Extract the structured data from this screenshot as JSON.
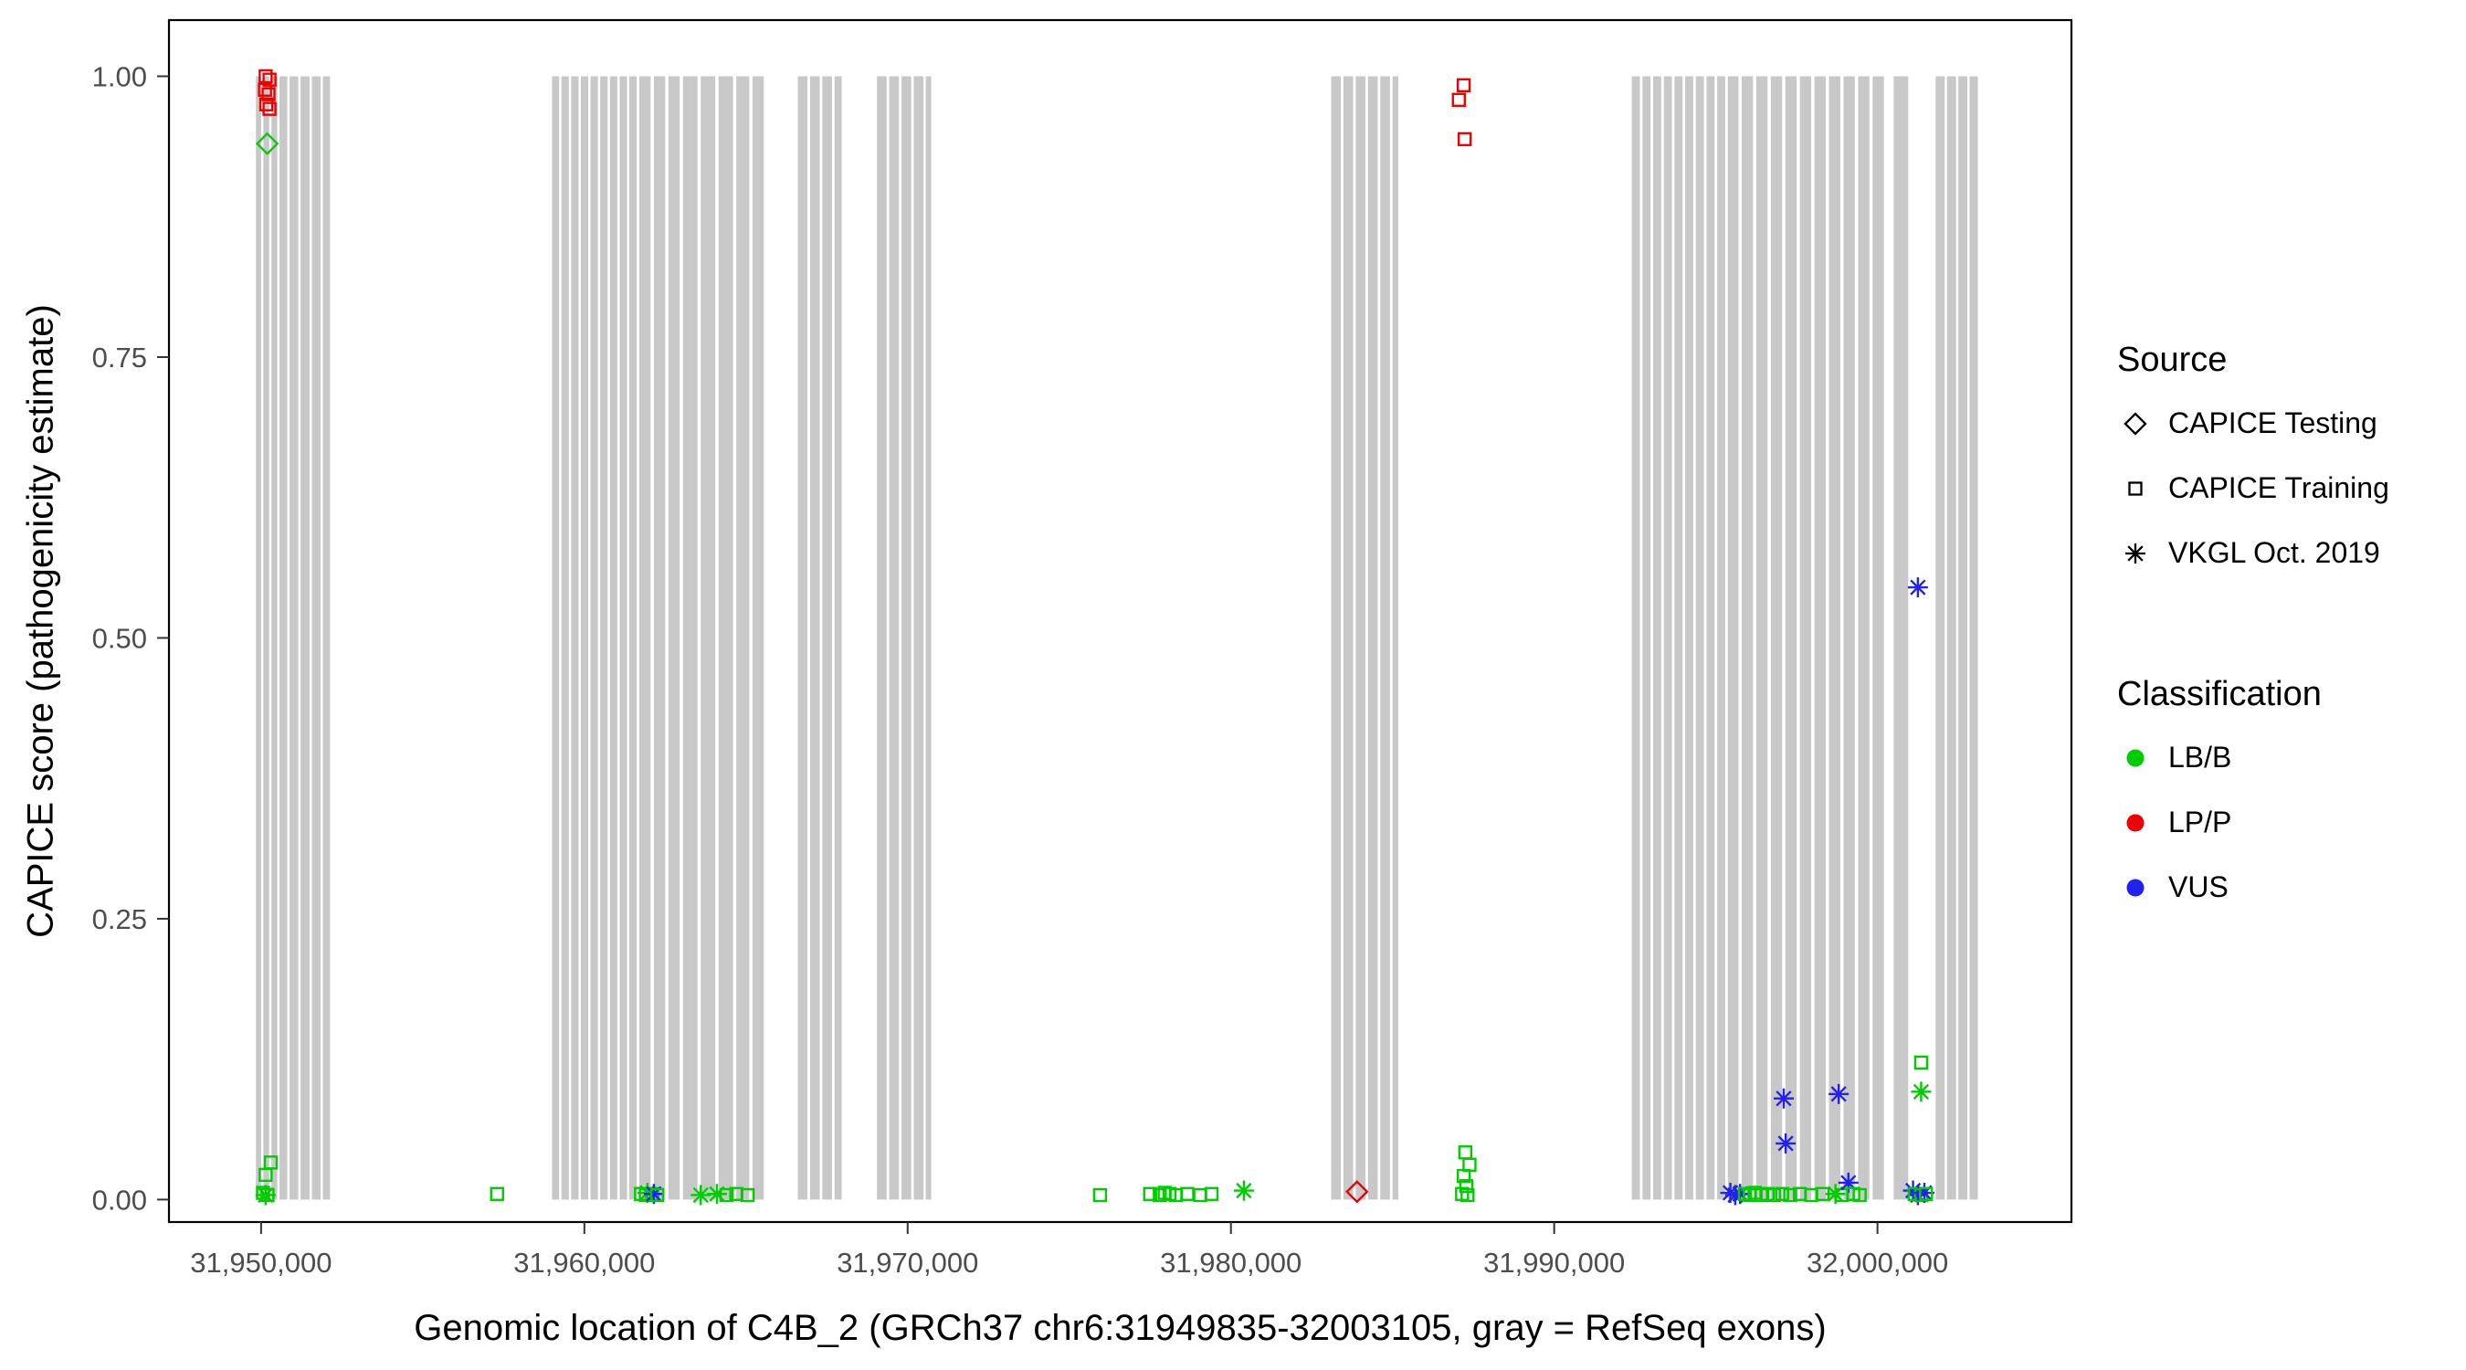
{
  "chart_data": {
    "type": "scatter",
    "xlabel": "Genomic location of C4B_2 (GRCh37 chr6:31949835-32003105, gray = RefSeq exons)",
    "ylabel": "CAPICE score (pathogenicity estimate)",
    "x_domain": [
      31947150,
      32006000
    ],
    "y_domain": [
      -0.02,
      1.05
    ],
    "x_ticks": [
      {
        "value": 31950000,
        "label": "31,950,000"
      },
      {
        "value": 31960000,
        "label": "31,960,000"
      },
      {
        "value": 31970000,
        "label": "31,970,000"
      },
      {
        "value": 31980000,
        "label": "31,980,000"
      },
      {
        "value": 31990000,
        "label": "31,990,000"
      },
      {
        "value": 32000000,
        "label": "32,000,000"
      }
    ],
    "y_ticks": [
      {
        "value": 0,
        "label": "0.00"
      },
      {
        "value": 0.25,
        "label": "0.25"
      },
      {
        "value": 0.5,
        "label": "0.50"
      },
      {
        "value": 0.75,
        "label": "0.75"
      },
      {
        "value": 1,
        "label": "1.00"
      }
    ],
    "colors": {
      "LB/B": "#00CD00",
      "LP/P": "#EE0000",
      "VUS": "#2222EE",
      "exon": "#C8C8C8",
      "tick_label": "#4D4D4D",
      "axis": "#333333"
    },
    "legend": {
      "source": {
        "title": "Source",
        "items": [
          {
            "label": "CAPICE Testing",
            "shape": "diamond"
          },
          {
            "label": "CAPICE Training",
            "shape": "square"
          },
          {
            "label": "VKGL Oct. 2019",
            "shape": "asterisk"
          }
        ]
      },
      "classification": {
        "title": "Classification",
        "items": [
          {
            "label": "LB/B",
            "color_key": "LB/B"
          },
          {
            "label": "LP/P",
            "color_key": "LP/P"
          },
          {
            "label": "VUS",
            "color_key": "VUS"
          }
        ]
      }
    },
    "exons": [
      [
        31949840,
        31950000
      ],
      [
        31950070,
        31950250
      ],
      [
        31950320,
        31950500
      ],
      [
        31950570,
        31950810
      ],
      [
        31950880,
        31951150
      ],
      [
        31951220,
        31951500
      ],
      [
        31951570,
        31951840
      ],
      [
        31951910,
        31952130
      ],
      [
        31959000,
        31959220
      ],
      [
        31959290,
        31959520
      ],
      [
        31959590,
        31959820
      ],
      [
        31959890,
        31960120
      ],
      [
        31960190,
        31960420
      ],
      [
        31960490,
        31960720
      ],
      [
        31960790,
        31961020
      ],
      [
        31961090,
        31961320
      ],
      [
        31961390,
        31961620
      ],
      [
        31961700,
        31962050
      ],
      [
        31962150,
        31962500
      ],
      [
        31962600,
        31962950
      ],
      [
        31963050,
        31963500
      ],
      [
        31963600,
        31964050
      ],
      [
        31964150,
        31964600
      ],
      [
        31964700,
        31965100
      ],
      [
        31965200,
        31965550
      ],
      [
        31966600,
        31966900
      ],
      [
        31966980,
        31967280
      ],
      [
        31967360,
        31967660
      ],
      [
        31967740,
        31967960
      ],
      [
        31969050,
        31969350
      ],
      [
        31969430,
        31969730
      ],
      [
        31969810,
        31970110
      ],
      [
        31970190,
        31970490
      ],
      [
        31970560,
        31970730
      ],
      [
        31983100,
        31983400
      ],
      [
        31983480,
        31983780
      ],
      [
        31983860,
        31984160
      ],
      [
        31984240,
        31984540
      ],
      [
        31984620,
        31984920
      ],
      [
        31985000,
        31985180
      ],
      [
        31992400,
        31992650
      ],
      [
        31992730,
        31992980
      ],
      [
        31993060,
        31993310
      ],
      [
        31993390,
        31993640
      ],
      [
        31993720,
        31993970
      ],
      [
        31994050,
        31994300
      ],
      [
        31994380,
        31994630
      ],
      [
        31994710,
        31994960
      ],
      [
        31995040,
        31995290
      ],
      [
        31995370,
        31995700
      ],
      [
        31995800,
        31996150
      ],
      [
        31996250,
        31996600
      ],
      [
        31996700,
        31997050
      ],
      [
        31997150,
        31997500
      ],
      [
        31997600,
        31997950
      ],
      [
        31998050,
        31998400
      ],
      [
        31998500,
        31998850
      ],
      [
        31998950,
        31999300
      ],
      [
        31999400,
        31999750
      ],
      [
        31999850,
        32000200
      ],
      [
        32000500,
        32000950
      ],
      [
        32001800,
        32002080
      ],
      [
        32002150,
        32002430
      ],
      [
        32002500,
        32002780
      ],
      [
        32002850,
        32003105
      ]
    ],
    "points": [
      {
        "x": 31950140,
        "y": 1.0,
        "source": "training",
        "class": "LP/P"
      },
      {
        "x": 31950260,
        "y": 0.997,
        "source": "training",
        "class": "LP/P"
      },
      {
        "x": 31950120,
        "y": 0.988,
        "source": "training",
        "class": "LP/P"
      },
      {
        "x": 31950230,
        "y": 0.984,
        "source": "training",
        "class": "LP/P"
      },
      {
        "x": 31950160,
        "y": 0.975,
        "source": "training",
        "class": "LP/P"
      },
      {
        "x": 31950260,
        "y": 0.971,
        "source": "training",
        "class": "LP/P"
      },
      {
        "x": 31950190,
        "y": 0.94,
        "source": "testing",
        "class": "LB/B"
      },
      {
        "x": 31987200,
        "y": 0.992,
        "source": "training",
        "class": "LP/P"
      },
      {
        "x": 31987050,
        "y": 0.979,
        "source": "training",
        "class": "LP/P"
      },
      {
        "x": 31987230,
        "y": 0.944,
        "source": "training",
        "class": "LP/P"
      },
      {
        "x": 32001250,
        "y": 0.545,
        "source": "vkgl",
        "class": "VUS"
      },
      {
        "x": 31983900,
        "y": 0.007,
        "source": "testing",
        "class": "LP/P"
      },
      {
        "x": 31950300,
        "y": 0.033,
        "source": "training",
        "class": "LB/B"
      },
      {
        "x": 31950140,
        "y": 0.022,
        "source": "training",
        "class": "LB/B"
      },
      {
        "x": 31950060,
        "y": 0.006,
        "source": "training",
        "class": "LB/B"
      },
      {
        "x": 31950200,
        "y": 0.004,
        "source": "training",
        "class": "LB/B"
      },
      {
        "x": 31950140,
        "y": 0.004,
        "source": "vkgl",
        "class": "LB/B"
      },
      {
        "x": 31957300,
        "y": 0.005,
        "source": "training",
        "class": "LB/B"
      },
      {
        "x": 31961750,
        "y": 0.005,
        "source": "training",
        "class": "LB/B"
      },
      {
        "x": 31961900,
        "y": 0.004,
        "source": "training",
        "class": "LB/B"
      },
      {
        "x": 31961950,
        "y": 0.006,
        "source": "vkgl",
        "class": "LB/B"
      },
      {
        "x": 31962100,
        "y": 0.005,
        "source": "training",
        "class": "LB/B"
      },
      {
        "x": 31962150,
        "y": 0.005,
        "source": "vkgl",
        "class": "VUS"
      },
      {
        "x": 31962250,
        "y": 0.004,
        "source": "training",
        "class": "LB/B"
      },
      {
        "x": 31963600,
        "y": 0.004,
        "source": "vkgl",
        "class": "LB/B"
      },
      {
        "x": 31964100,
        "y": 0.005,
        "source": "vkgl",
        "class": "LB/B"
      },
      {
        "x": 31964400,
        "y": 0.004,
        "source": "training",
        "class": "LB/B"
      },
      {
        "x": 31964700,
        "y": 0.005,
        "source": "training",
        "class": "LB/B"
      },
      {
        "x": 31965050,
        "y": 0.004,
        "source": "training",
        "class": "LB/B"
      },
      {
        "x": 31975950,
        "y": 0.004,
        "source": "training",
        "class": "LB/B"
      },
      {
        "x": 31977500,
        "y": 0.005,
        "source": "training",
        "class": "LB/B"
      },
      {
        "x": 31977800,
        "y": 0.004,
        "source": "training",
        "class": "LB/B"
      },
      {
        "x": 31977950,
        "y": 0.006,
        "source": "training",
        "class": "LB/B"
      },
      {
        "x": 31978100,
        "y": 0.005,
        "source": "training",
        "class": "LB/B"
      },
      {
        "x": 31978300,
        "y": 0.004,
        "source": "training",
        "class": "LB/B"
      },
      {
        "x": 31978650,
        "y": 0.005,
        "source": "training",
        "class": "LB/B"
      },
      {
        "x": 31979050,
        "y": 0.004,
        "source": "training",
        "class": "LB/B"
      },
      {
        "x": 31979400,
        "y": 0.005,
        "source": "training",
        "class": "LB/B"
      },
      {
        "x": 31980400,
        "y": 0.008,
        "source": "vkgl",
        "class": "LB/B"
      },
      {
        "x": 31987250,
        "y": 0.042,
        "source": "training",
        "class": "LB/B"
      },
      {
        "x": 31987380,
        "y": 0.031,
        "source": "training",
        "class": "LB/B"
      },
      {
        "x": 31987200,
        "y": 0.021,
        "source": "training",
        "class": "LB/B"
      },
      {
        "x": 31987280,
        "y": 0.012,
        "source": "training",
        "class": "LB/B"
      },
      {
        "x": 31987150,
        "y": 0.005,
        "source": "training",
        "class": "LB/B"
      },
      {
        "x": 31987320,
        "y": 0.004,
        "source": "training",
        "class": "LB/B"
      },
      {
        "x": 31995450,
        "y": 0.006,
        "source": "vkgl",
        "class": "VUS"
      },
      {
        "x": 31995600,
        "y": 0.004,
        "source": "vkgl",
        "class": "VUS"
      },
      {
        "x": 31995750,
        "y": 0.005,
        "source": "vkgl",
        "class": "VUS"
      },
      {
        "x": 31995900,
        "y": 0.005,
        "source": "training",
        "class": "LB/B"
      },
      {
        "x": 31996050,
        "y": 0.004,
        "source": "training",
        "class": "LB/B"
      },
      {
        "x": 31996200,
        "y": 0.006,
        "source": "training",
        "class": "LB/B"
      },
      {
        "x": 31996400,
        "y": 0.004,
        "source": "training",
        "class": "LB/B"
      },
      {
        "x": 31996600,
        "y": 0.005,
        "source": "training",
        "class": "LB/B"
      },
      {
        "x": 31996800,
        "y": 0.004,
        "source": "training",
        "class": "LB/B"
      },
      {
        "x": 31997100,
        "y": 0.09,
        "source": "vkgl",
        "class": "VUS"
      },
      {
        "x": 31997160,
        "y": 0.05,
        "source": "vkgl",
        "class": "VUS"
      },
      {
        "x": 31997050,
        "y": 0.005,
        "source": "training",
        "class": "LB/B"
      },
      {
        "x": 31997300,
        "y": 0.004,
        "source": "training",
        "class": "LB/B"
      },
      {
        "x": 31997600,
        "y": 0.005,
        "source": "training",
        "class": "LB/B"
      },
      {
        "x": 31997950,
        "y": 0.004,
        "source": "training",
        "class": "LB/B"
      },
      {
        "x": 31998300,
        "y": 0.005,
        "source": "training",
        "class": "LB/B"
      },
      {
        "x": 31998700,
        "y": 0.005,
        "source": "vkgl",
        "class": "LB/B"
      },
      {
        "x": 31998800,
        "y": 0.094,
        "source": "vkgl",
        "class": "VUS"
      },
      {
        "x": 31998900,
        "y": 0.004,
        "source": "training",
        "class": "LB/B"
      },
      {
        "x": 31999100,
        "y": 0.015,
        "source": "vkgl",
        "class": "VUS"
      },
      {
        "x": 31999250,
        "y": 0.005,
        "source": "training",
        "class": "LB/B"
      },
      {
        "x": 31999450,
        "y": 0.004,
        "source": "training",
        "class": "LB/B"
      },
      {
        "x": 32001350,
        "y": 0.122,
        "source": "training",
        "class": "LB/B"
      },
      {
        "x": 32001350,
        "y": 0.096,
        "source": "vkgl",
        "class": "LB/B"
      },
      {
        "x": 32001100,
        "y": 0.008,
        "source": "vkgl",
        "class": "VUS"
      },
      {
        "x": 32001250,
        "y": 0.004,
        "source": "vkgl",
        "class": "VUS"
      },
      {
        "x": 32001150,
        "y": 0.005,
        "source": "training",
        "class": "LB/B"
      },
      {
        "x": 32001350,
        "y": 0.004,
        "source": "training",
        "class": "LB/B"
      },
      {
        "x": 32001450,
        "y": 0.006,
        "source": "vkgl",
        "class": "VUS"
      },
      {
        "x": 32001500,
        "y": 0.005,
        "source": "training",
        "class": "LB/B"
      }
    ]
  }
}
